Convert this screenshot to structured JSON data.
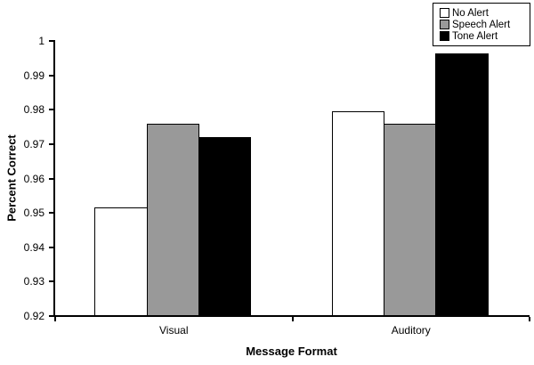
{
  "chart_data": {
    "type": "bar",
    "xlabel": "Message Format",
    "ylabel": "Percent Correct",
    "categories": [
      "Visual",
      "Auditory"
    ],
    "series": [
      {
        "name": "No Alert",
        "color": "#ffffff",
        "values": [
          0.9515,
          0.9795
        ]
      },
      {
        "name": "Speech Alert",
        "color": "#999999",
        "values": [
          0.976,
          0.976
        ]
      },
      {
        "name": "Tone Alert",
        "color": "#000000",
        "values": [
          0.972,
          0.9965
        ]
      }
    ],
    "ylim": [
      0.92,
      1.0
    ],
    "yticks": [
      0.92,
      0.93,
      0.94,
      0.95,
      0.96,
      0.97,
      0.98,
      0.99,
      1
    ],
    "ytick_labels": [
      "0.92",
      "0.93",
      "0.94",
      "0.95",
      "0.96",
      "0.97",
      "0.98",
      "0.99",
      "1"
    ],
    "grid": false,
    "legend_position": "top-right",
    "bar_border_color": "#000000",
    "axis_color": "#000000",
    "background_color": "#ffffff"
  }
}
